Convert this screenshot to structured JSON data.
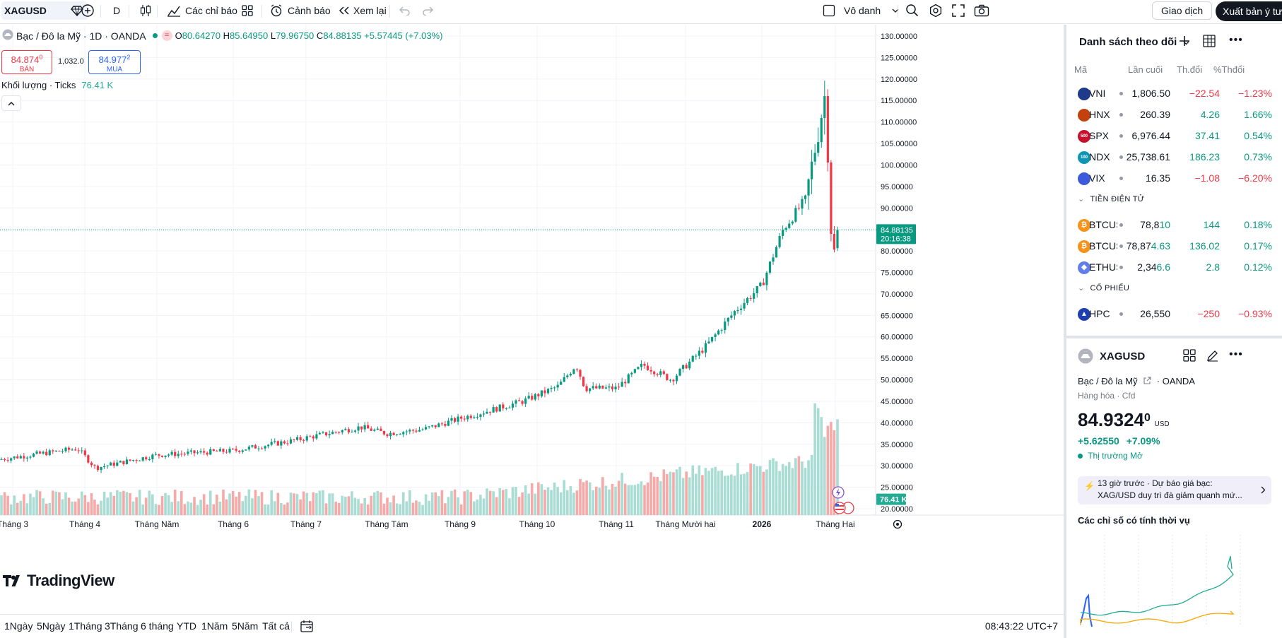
{
  "toolbar": {
    "symbol": "XAGUSD",
    "interval": "D",
    "indicators_label": "Các chỉ báo",
    "alerts_label": "Cảnh báo",
    "replay_label": "Xem lại",
    "layout_name": "Vô danh",
    "trade_label": "Giao dịch",
    "publish_label": "Xuất bản ý tư"
  },
  "legend": {
    "title": "Bạc / Đô la Mỹ · 1D · OANDA",
    "open_label": "O",
    "open": "80.64270",
    "high_label": "H",
    "high": "85.64950",
    "low_label": "L",
    "low": "79.96750",
    "close_label": "C",
    "close": "84.88135",
    "change": "+5.57445 (+7.03%)",
    "bid_price": "84.874",
    "bid_sup": "0",
    "bid_label": "BÁN",
    "spread": "1,032.0",
    "ask_price": "84.977",
    "ask_sup": "2",
    "ask_label": "MUA",
    "volume_label": "Khối lượng · Ticks",
    "volume_value": "76.41 K",
    "logo_text": "TradingView"
  },
  "chart_data": {
    "type": "candlestick",
    "title": "Bạc / Đô la Mỹ · 1D · OANDA",
    "ylim": [
      20,
      130
    ],
    "y_ticks": [
      "130.00000",
      "125.00000",
      "120.00000",
      "115.00000",
      "110.00000",
      "105.00000",
      "100.00000",
      "95.00000",
      "90.00000",
      "85.00000",
      "80.00000",
      "75.00000",
      "70.00000",
      "65.00000",
      "60.00000",
      "55.00000",
      "50.00000",
      "45.00000",
      "40.00000",
      "35.00000",
      "30.00000",
      "25.00000",
      "20.00000"
    ],
    "x_ticks": [
      "Tháng 3",
      "Tháng 4",
      "Tháng Năm",
      "Tháng 6",
      "Tháng 7",
      "Tháng Tám",
      "Tháng 9",
      "Tháng 10",
      "Tháng 11",
      "Tháng Mười hai",
      "2026",
      "Tháng Hai"
    ],
    "close_path": [
      {
        "month": "Tháng 3",
        "close": 31.5
      },
      {
        "month": "Tháng 4",
        "close": 34.0
      },
      {
        "month": "Tháng 4 (low)",
        "close": 29.5
      },
      {
        "month": "Tháng Năm",
        "close": 32.5
      },
      {
        "month": "Tháng 6",
        "close": 33.5
      },
      {
        "month": "Tháng 6 (late)",
        "close": 36.0
      },
      {
        "month": "Tháng 7",
        "close": 36.5
      },
      {
        "month": "Tháng 7 (late)",
        "close": 39.0
      },
      {
        "month": "Tháng Tám",
        "close": 37.5
      },
      {
        "month": "Tháng Tám (late)",
        "close": 38.5
      },
      {
        "month": "Tháng 9",
        "close": 41.0
      },
      {
        "month": "Tháng 9 (late)",
        "close": 45.0
      },
      {
        "month": "Tháng 10",
        "close": 48.5
      },
      {
        "month": "Tháng 10 (peak)",
        "close": 53.5
      },
      {
        "month": "Tháng 10 (late)",
        "close": 48.0
      },
      {
        "month": "Tháng 11",
        "close": 48.0
      },
      {
        "month": "Tháng 11 (late)",
        "close": 53.5
      },
      {
        "month": "Tháng Mười hai",
        "close": 50.0
      },
      {
        "month": "Tháng Mười hai (mid)",
        "close": 58.0
      },
      {
        "month": "Tháng Mười hai (late)",
        "close": 66.0
      },
      {
        "month": "2026",
        "close": 72.0
      },
      {
        "month": "2026 (mid)",
        "close": 85.0
      },
      {
        "month": "2026 (late)",
        "close": 92.0
      },
      {
        "month": "Tháng Hai (peak)",
        "close": 117.0
      },
      {
        "month": "Tháng Hai (drop)",
        "close": 77.0
      },
      {
        "month": "Tháng Hai (last)",
        "close": 84.88
      }
    ],
    "last_price_tag": "84.88135",
    "countdown": "20:16:38",
    "volume_tag": "76.41 K"
  },
  "bottom_bar": {
    "ranges": [
      "1Ngày",
      "5Ngày",
      "1Tháng",
      "3Tháng",
      "6 tháng",
      "YTD",
      "1Năm",
      "5Năm",
      "Tất cả"
    ],
    "clock": "08:43:22 UTC+7"
  },
  "watchlist": {
    "title": "Danh sách theo dõi",
    "col_symbol": "Mã",
    "col_last": "Lần cuối",
    "col_chg": "Th.đổi",
    "col_pct": "%Thđổi",
    "rows_top": [
      {
        "sym": "VNI",
        "last": "1,806.50",
        "chg": "−22.54",
        "pct": "−1.23%",
        "dir": "neg",
        "icon_color": "#1e3a8a",
        "icon_text": ""
      },
      {
        "sym": "HNX",
        "last": "260.39",
        "chg": "4.26",
        "pct": "1.66%",
        "dir": "pos",
        "icon_color": "#c2410c",
        "icon_text": ""
      },
      {
        "sym": "SPX",
        "last": "6,976.44",
        "chg": "37.41",
        "pct": "0.54%",
        "dir": "pos",
        "icon_color": "#c8102e",
        "icon_text": "500"
      },
      {
        "sym": "NDX",
        "last": "25,738.61",
        "chg": "186.23",
        "pct": "0.73%",
        "dir": "pos",
        "icon_color": "#0e95b4",
        "icon_text": "100"
      },
      {
        "sym": "VIX",
        "last": "16.35",
        "chg": "−1.08",
        "pct": "−6.20%",
        "dir": "neg",
        "icon_color": "#3b5bdb",
        "icon_text": ""
      }
    ],
    "section_crypto": "TIỀN ĐIỆN TỬ",
    "rows_crypto": [
      {
        "sym": "BTCUS",
        "last": "78,8",
        "last_hl": "10",
        "chg": "144",
        "pct": "0.18%",
        "dir": "pos",
        "icon_color": "#f7931a",
        "icon_text": "₿"
      },
      {
        "sym": "BTCUS",
        "last": "78,87",
        "last_hl": "4.63",
        "chg": "136.02",
        "pct": "0.17%",
        "dir": "pos",
        "icon_color": "#f7931a",
        "icon_text": "₿"
      },
      {
        "sym": "ETHUS",
        "last": "2,34",
        "last_hl": "6.6",
        "chg": "2.8",
        "pct": "0.12%",
        "dir": "pos",
        "icon_color": "#627eea",
        "icon_text": "◆"
      }
    ],
    "section_stocks": "CỔ PHIẾU",
    "rows_stocks": [
      {
        "sym": "HPC",
        "last": "26,550",
        "chg": "−250",
        "pct": "−0.93%",
        "dir": "neg",
        "icon_color": "#1e40af",
        "icon_text": "▲"
      }
    ]
  },
  "detail": {
    "symbol": "XAGUSD",
    "name": "Bạc / Đô la Mỹ",
    "exchange": "OANDA",
    "category": "Hàng hóa",
    "sub_category": "Cfd",
    "price_main": "84.",
    "price_big": "9324",
    "price_sup": "0",
    "currency": "USD",
    "change": "+5.62550",
    "change_pct": "+7.09%",
    "market_status": "Thị trường Mở",
    "news_time": "13 giờ trước",
    "news_text_1": "Dự báo giá bạc:",
    "news_text_2": "XAG/USD duy trì đà giảm quanh mứ...",
    "seasonals_title": "Các chỉ số có tính thời vụ"
  }
}
